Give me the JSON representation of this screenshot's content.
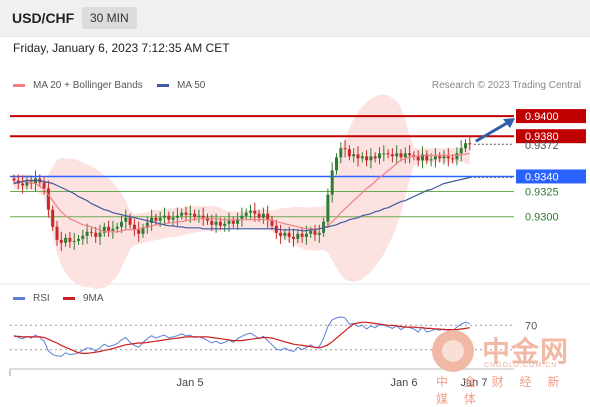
{
  "header": {
    "pair": "USD/CHF",
    "timeframe": "30 MIN"
  },
  "timestamp": "Friday, January 6, 2023 7:12:35 AM CET",
  "legend": [
    {
      "label": "MA 20 + Bollinger Bands",
      "color": "#f08080"
    },
    {
      "label": "MA 50",
      "color": "#3f5a9e"
    }
  ],
  "credit": "Research © 2023 Trading Central",
  "rsi_legend": [
    {
      "label": "RSI",
      "color": "#5b7fd6"
    },
    {
      "label": "9MA",
      "color": "#cc1f1f"
    }
  ],
  "watermark": {
    "name": "中金网",
    "url": "CNGOLD.COM.CN",
    "sub": "中 金 财 经 新 媒 体"
  },
  "colors": {
    "up": "#2e7d32",
    "down": "#c62828",
    "resistance": "#c00000",
    "pivot": "#2962ff",
    "support": "#6aaa4f",
    "band": "#fde2e2"
  },
  "chart_data": {
    "type": "candlestick",
    "ylim": [
      0.9255,
      0.941
    ],
    "x_labels": [
      "Jan 5",
      "Jan 6",
      "Jan 7"
    ],
    "price_labels": [
      {
        "text": "0.9400",
        "value": 0.94,
        "style": "resistance"
      },
      {
        "text": "0.9380",
        "value": 0.938,
        "style": "resistance"
      },
      {
        "text": "0.9372",
        "value": 0.9372,
        "style": "current"
      },
      {
        "text": "0.9340",
        "value": 0.934,
        "style": "pivot"
      },
      {
        "text": "0.9325",
        "value": 0.9325,
        "style": "support"
      },
      {
        "text": "0.9300",
        "value": 0.93,
        "style": "support"
      }
    ],
    "close": [
      0.9336,
      0.9333,
      0.9331,
      0.9335,
      0.9333,
      0.9338,
      0.9334,
      0.9328,
      0.9307,
      0.929,
      0.9277,
      0.9274,
      0.9279,
      0.9275,
      0.9276,
      0.9278,
      0.9281,
      0.9285,
      0.9284,
      0.928,
      0.9284,
      0.929,
      0.9286,
      0.9288,
      0.929,
      0.9295,
      0.9299,
      0.9292,
      0.9287,
      0.9283,
      0.9289,
      0.9294,
      0.9299,
      0.9296,
      0.9299,
      0.9301,
      0.9297,
      0.9299,
      0.9301,
      0.9304,
      0.9302,
      0.9303,
      0.93,
      0.9301,
      0.9299,
      0.9296,
      0.9292,
      0.9295,
      0.9291,
      0.9293,
      0.9296,
      0.9293,
      0.9298,
      0.9301,
      0.9304,
      0.9306,
      0.9303,
      0.9299,
      0.9303,
      0.9297,
      0.9291,
      0.9284,
      0.9281,
      0.9284,
      0.928,
      0.9278,
      0.9283,
      0.928,
      0.9283,
      0.9286,
      0.9282,
      0.9284,
      0.9295,
      0.9322,
      0.9346,
      0.9359,
      0.9368,
      0.9367,
      0.936,
      0.9362,
      0.9358,
      0.936,
      0.9356,
      0.936,
      0.9358,
      0.9363,
      0.9363,
      0.9362,
      0.936,
      0.9363,
      0.9359,
      0.9363,
      0.9361,
      0.936,
      0.9356,
      0.9362,
      0.9356,
      0.9357,
      0.936,
      0.9358,
      0.936,
      0.9358,
      0.9357,
      0.9363,
      0.9368,
      0.9373,
      0.9372
    ],
    "ma20": [
      0.9334,
      0.9334,
      0.9335,
      0.9335,
      0.9334,
      0.9333,
      0.933,
      0.9327,
      0.9322,
      0.9316,
      0.931,
      0.9305,
      0.9301,
      0.9298,
      0.9296,
      0.9294,
      0.9292,
      0.9291,
      0.929,
      0.9288,
      0.9287,
      0.9285,
      0.9285,
      0.9285,
      0.9285,
      0.9286,
      0.9287,
      0.9287,
      0.9287,
      0.9288,
      0.9289,
      0.929,
      0.9291,
      0.9292,
      0.9292,
      0.9293,
      0.9294,
      0.9294,
      0.9295,
      0.9295,
      0.9296,
      0.9297,
      0.9297,
      0.9298,
      0.9298,
      0.9298,
      0.9298,
      0.9298,
      0.9297,
      0.9297,
      0.9297,
      0.9297,
      0.9297,
      0.9297,
      0.9297,
      0.9297,
      0.9297,
      0.9297,
      0.9297,
      0.9297,
      0.9296,
      0.9295,
      0.9294,
      0.9293,
      0.9292,
      0.9291,
      0.929,
      0.9289,
      0.9288,
      0.9288,
      0.9288,
      0.9288,
      0.9289,
      0.9291,
      0.9295,
      0.9299,
      0.9304,
      0.9308,
      0.9312,
      0.9316,
      0.932,
      0.9324,
      0.9328,
      0.9331,
      0.9335,
      0.9339,
      0.9342,
      0.9346,
      0.9349,
      0.9353,
      0.9356,
      0.9358,
      0.9359,
      0.936,
      0.936,
      0.9361,
      0.9361,
      0.9361,
      0.9361,
      0.9361,
      0.9361,
      0.9361,
      0.9361,
      0.9361,
      0.9362,
      0.9362,
      0.9363
    ],
    "ma50": [
      0.9333,
      0.9334,
      0.9335,
      0.9336,
      0.9336,
      0.9336,
      0.9336,
      0.9335,
      0.9334,
      0.9333,
      0.9331,
      0.9329,
      0.9327,
      0.9325,
      0.9323,
      0.932,
      0.9318,
      0.9316,
      0.9313,
      0.9311,
      0.9309,
      0.9307,
      0.9306,
      0.9304,
      0.9303,
      0.9302,
      0.9301,
      0.93,
      0.9299,
      0.9298,
      0.9297,
      0.9296,
      0.9295,
      0.9294,
      0.9293,
      0.9292,
      0.9291,
      0.9291,
      0.929,
      0.929,
      0.9289,
      0.9289,
      0.9289,
      0.9289,
      0.9288,
      0.9288,
      0.9288,
      0.9288,
      0.9288,
      0.9288,
      0.9288,
      0.9288,
      0.9288,
      0.9288,
      0.9288,
      0.9288,
      0.9288,
      0.9288,
      0.9288,
      0.9288,
      0.9288,
      0.9288,
      0.9287,
      0.9287,
      0.9287,
      0.9287,
      0.9287,
      0.9286,
      0.9286,
      0.9287,
      0.9287,
      0.9288,
      0.9289,
      0.929,
      0.9291,
      0.9292,
      0.9294,
      0.9295,
      0.9297,
      0.9298,
      0.9299,
      0.9301,
      0.9302,
      0.9303,
      0.9305,
      0.9306,
      0.9308,
      0.9309,
      0.9311,
      0.9313,
      0.9315,
      0.9316,
      0.9318,
      0.932,
      0.9322,
      0.9324,
      0.9326,
      0.9327,
      0.9329,
      0.9331,
      0.9333,
      0.9334,
      0.9335,
      0.9336,
      0.9337,
      0.9338,
      0.9339
    ],
    "rsi_levels": [
      70,
      30
    ],
    "rsi": [
      54,
      50,
      48,
      52,
      49,
      54,
      50,
      44,
      28,
      22,
      20,
      19,
      25,
      22,
      23,
      25,
      29,
      33,
      32,
      28,
      33,
      39,
      35,
      37,
      40,
      46,
      50,
      42,
      37,
      34,
      42,
      48,
      53,
      49,
      52,
      54,
      49,
      51,
      53,
      56,
      53,
      54,
      50,
      51,
      49,
      45,
      41,
      44,
      40,
      42,
      46,
      42,
      48,
      52,
      55,
      57,
      53,
      48,
      52,
      45,
      38,
      31,
      29,
      33,
      29,
      27,
      34,
      30,
      34,
      38,
      33,
      35,
      49,
      68,
      79,
      82,
      84,
      82,
      72,
      73,
      68,
      70,
      64,
      69,
      66,
      71,
      70,
      68,
      65,
      69,
      63,
      68,
      66,
      64,
      59,
      67,
      59,
      61,
      64,
      62,
      64,
      62,
      61,
      67,
      72,
      75,
      73
    ],
    "rsi_ma": [
      52,
      52,
      51,
      51,
      51,
      51,
      51,
      50,
      47,
      44,
      41,
      37,
      34,
      31,
      28,
      25,
      24,
      24,
      25,
      26,
      27,
      29,
      30,
      32,
      34,
      36,
      38,
      39,
      40,
      41,
      41,
      42,
      43,
      44,
      45,
      46,
      47,
      48,
      49,
      50,
      51,
      51,
      51,
      51,
      51,
      51,
      50,
      49,
      48,
      47,
      46,
      45,
      45,
      45,
      46,
      47,
      48,
      49,
      50,
      50,
      49,
      47,
      45,
      43,
      41,
      39,
      38,
      37,
      36,
      35,
      34,
      33,
      35,
      38,
      43,
      49,
      55,
      61,
      67,
      72,
      74,
      75,
      75,
      74,
      73,
      72,
      71,
      70,
      70,
      69,
      68,
      67,
      67,
      67,
      66,
      66,
      65,
      65,
      64,
      64,
      63,
      63,
      63,
      63,
      64,
      65,
      66
    ]
  }
}
